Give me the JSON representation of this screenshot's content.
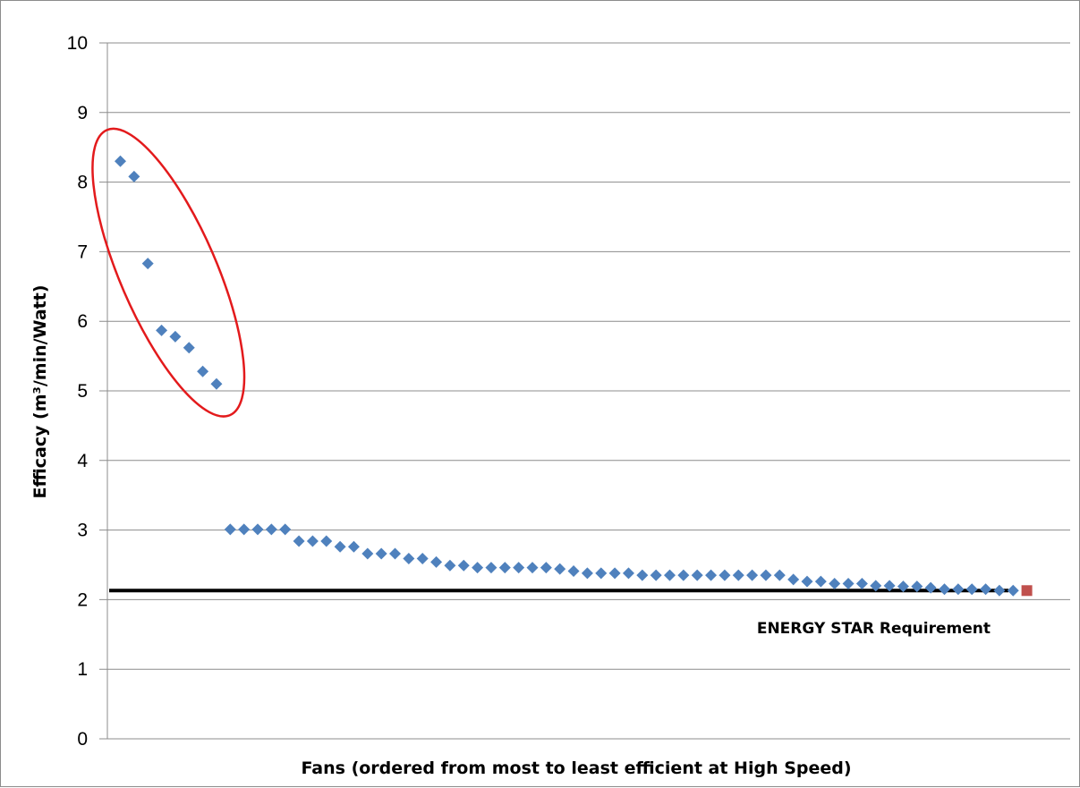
{
  "chart_data": {
    "type": "scatter",
    "title": "",
    "xlabel": "Fans (ordered from most to least efficient at High Speed)",
    "ylabel": "Efficacy (m³/min/Watt)",
    "ylim": [
      0,
      10
    ],
    "yticks": [
      0,
      1,
      2,
      3,
      4,
      5,
      6,
      7,
      8,
      9,
      10
    ],
    "grid": "horizontal",
    "legend": "none",
    "series": [
      {
        "marker": "diamond",
        "color": "#4f81bd",
        "x": [
          1,
          2,
          3,
          4,
          5,
          6,
          7,
          8,
          9,
          10,
          11,
          12,
          13,
          14,
          15,
          16,
          17,
          18,
          19,
          20,
          21,
          22,
          23,
          24,
          25,
          26,
          27,
          28,
          29,
          30,
          31,
          32,
          33,
          34,
          35,
          36,
          37,
          38,
          39,
          40,
          41,
          42,
          43,
          44,
          45,
          46,
          47,
          48,
          49,
          50,
          51,
          52,
          53,
          54,
          55,
          56,
          57,
          58,
          59,
          60,
          61,
          62,
          63,
          64,
          65,
          66
        ],
        "y": [
          8.3,
          8.08,
          6.83,
          5.87,
          5.78,
          5.62,
          5.28,
          5.1,
          3.01,
          3.01,
          3.01,
          3.01,
          3.01,
          2.84,
          2.84,
          2.84,
          2.76,
          2.76,
          2.66,
          2.66,
          2.66,
          2.59,
          2.59,
          2.54,
          2.49,
          2.49,
          2.46,
          2.46,
          2.46,
          2.46,
          2.46,
          2.46,
          2.44,
          2.41,
          2.38,
          2.38,
          2.38,
          2.38,
          2.35,
          2.35,
          2.35,
          2.35,
          2.35,
          2.35,
          2.35,
          2.35,
          2.35,
          2.35,
          2.35,
          2.29,
          2.26,
          2.26,
          2.23,
          2.23,
          2.23,
          2.2,
          2.2,
          2.19,
          2.19,
          2.17,
          2.15,
          2.15,
          2.15,
          2.15,
          2.13,
          2.13
        ]
      },
      {
        "marker": "square",
        "color": "#c0504d",
        "x": [
          67
        ],
        "y": [
          2.13
        ]
      }
    ],
    "reference_line": {
      "y": 2.13,
      "label": "ENERGY STAR Requirement",
      "color": "#000000"
    },
    "highlight": {
      "shape": "ellipse",
      "color": "#e31a1c",
      "x_range": [
        1,
        8
      ],
      "y_range": [
        5.1,
        8.3
      ]
    }
  }
}
